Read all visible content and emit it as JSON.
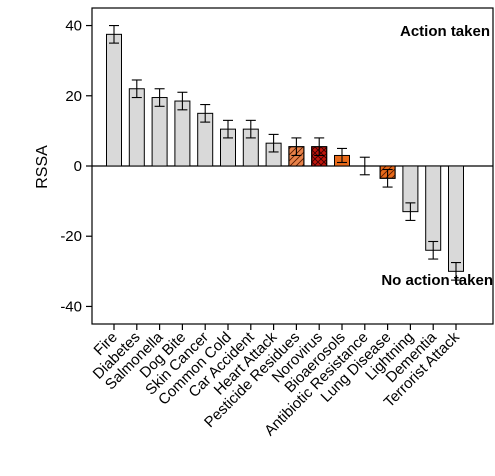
{
  "chart_data": {
    "type": "bar",
    "ylabel": "RSSA",
    "ylim": [
      -45,
      45
    ],
    "yticks": [
      40,
      20,
      0,
      -20,
      -40
    ],
    "annotations": {
      "top": "Action taken",
      "bottom": "No action taken"
    },
    "categories": [
      "Fire",
      "Diabetes",
      "Salmonella",
      "Dog Bite",
      "Skin Cancer",
      "Common Cold",
      "Car Accident",
      "Heart Attack",
      "Pesticide Residues",
      "Norovirus",
      "Bioaerosols",
      "Antibiotic Resistance",
      "Lung Disease",
      "Lightning",
      "Dementia",
      "Terrorist Attack"
    ],
    "values": [
      37.5,
      22,
      19.5,
      18.5,
      15,
      10.5,
      10.5,
      6.5,
      5.5,
      5.5,
      3,
      0,
      -3.5,
      -13,
      -24,
      -30
    ],
    "errors": [
      2.5,
      2.5,
      2.5,
      2.5,
      2.5,
      2.5,
      2.5,
      2.5,
      2.5,
      2.5,
      2,
      2.5,
      2.5,
      2.5,
      2.5,
      2.5
    ],
    "colors": {
      "default": "#d9d9d9",
      "Pesticide Residues": "#e8824a",
      "Norovirus": "#c0150c",
      "Bioaerosols": "#e86a1a",
      "Lung Disease": "#e86a1a"
    },
    "hatched": [
      "Pesticide Residues",
      "Norovirus",
      "Lung Disease"
    ]
  }
}
